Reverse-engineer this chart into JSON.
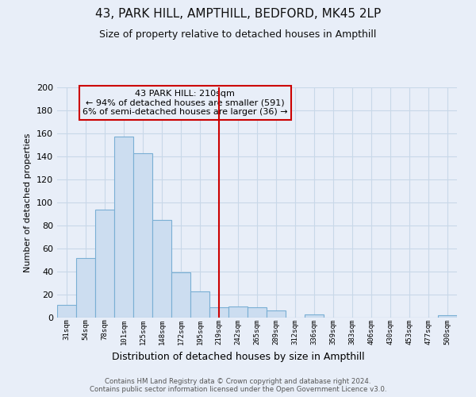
{
  "title": "43, PARK HILL, AMPTHILL, BEDFORD, MK45 2LP",
  "subtitle": "Size of property relative to detached houses in Ampthill",
  "xlabel": "Distribution of detached houses by size in Ampthill",
  "ylabel": "Number of detached properties",
  "bar_labels": [
    "31sqm",
    "54sqm",
    "78sqm",
    "101sqm",
    "125sqm",
    "148sqm",
    "172sqm",
    "195sqm",
    "219sqm",
    "242sqm",
    "265sqm",
    "289sqm",
    "312sqm",
    "336sqm",
    "359sqm",
    "383sqm",
    "406sqm",
    "430sqm",
    "453sqm",
    "477sqm",
    "500sqm"
  ],
  "bar_values": [
    11,
    52,
    94,
    157,
    143,
    85,
    39,
    23,
    9,
    10,
    9,
    6,
    0,
    3,
    0,
    0,
    0,
    0,
    0,
    0,
    2
  ],
  "bar_color": "#ccddf0",
  "bar_edge_color": "#7aafd4",
  "ylim": [
    0,
    200
  ],
  "yticks": [
    0,
    20,
    40,
    60,
    80,
    100,
    120,
    140,
    160,
    180,
    200
  ],
  "property_line_x": 8.0,
  "property_line_label": "43 PARK HILL: 210sqm",
  "annotation_line1": "← 94% of detached houses are smaller (591)",
  "annotation_line2": "6% of semi-detached houses are larger (36) →",
  "footer_line1": "Contains HM Land Registry data © Crown copyright and database right 2024.",
  "footer_line2": "Contains public sector information licensed under the Open Government Licence v3.0.",
  "background_color": "#e8eef8",
  "grid_color": "#c8d8e8",
  "plot_bg_color": "#e8eef8"
}
